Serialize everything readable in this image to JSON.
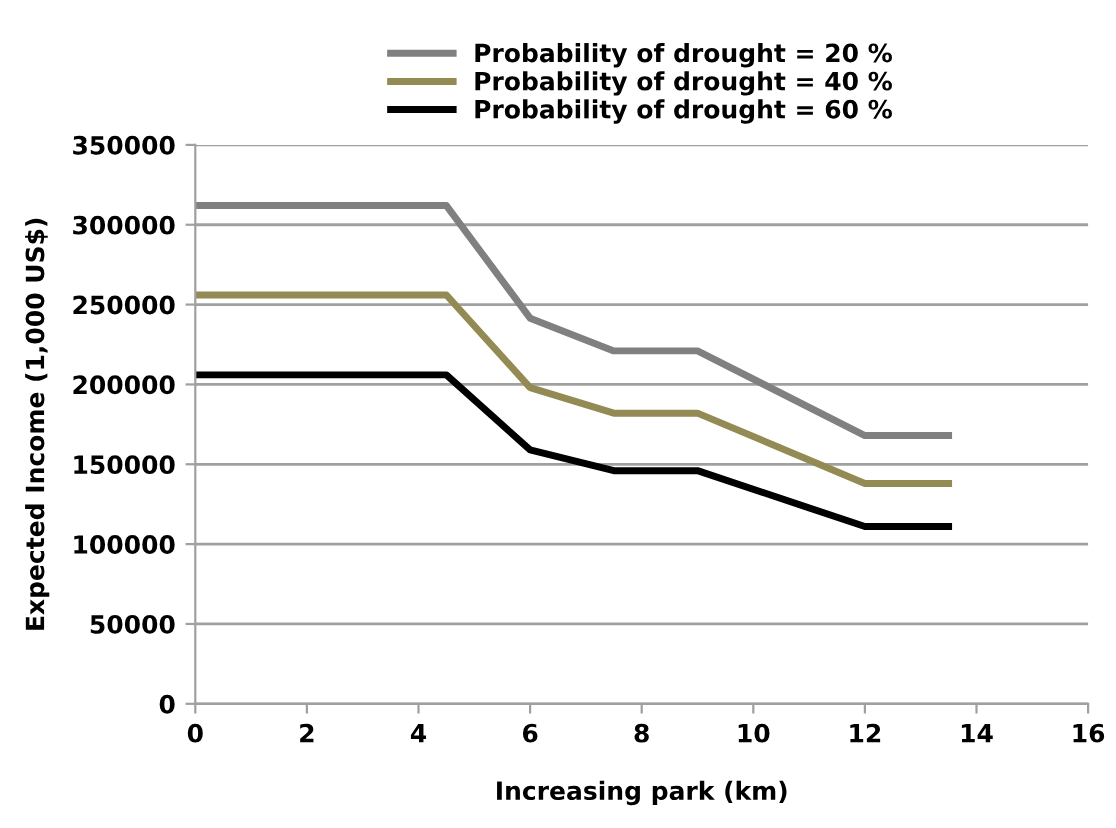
{
  "chart_data": {
    "type": "line",
    "xlabel": "Increasing park (km)",
    "ylabel": "Expected Income (1,000 US$)",
    "x": [
      0,
      4.5,
      6,
      7.5,
      9,
      12,
      13.5
    ],
    "series": [
      {
        "name": "Probability of drought = 20 %",
        "color": "#808080",
        "values": [
          312000,
          312000,
          241500,
          221000,
          221000,
          168000,
          168000
        ]
      },
      {
        "name": "Probability of drought = 40 %",
        "color": "#948a54",
        "values": [
          256000,
          256000,
          198000,
          182000,
          182000,
          138000,
          138000
        ]
      },
      {
        "name": "Probability of drought = 60 %",
        "color": "#000000",
        "values": [
          206000,
          206000,
          159000,
          146000,
          146000,
          111000,
          111000
        ]
      }
    ],
    "xlim": [
      0,
      16
    ],
    "xticks": [
      0,
      2,
      4,
      6,
      8,
      10,
      12,
      14,
      16
    ],
    "ylim": [
      0,
      350000
    ],
    "yticks": [
      0,
      50000,
      100000,
      150000,
      200000,
      250000,
      300000,
      350000
    ],
    "grid": "y",
    "legend": "top",
    "marker": "none",
    "line_style": "solid"
  }
}
